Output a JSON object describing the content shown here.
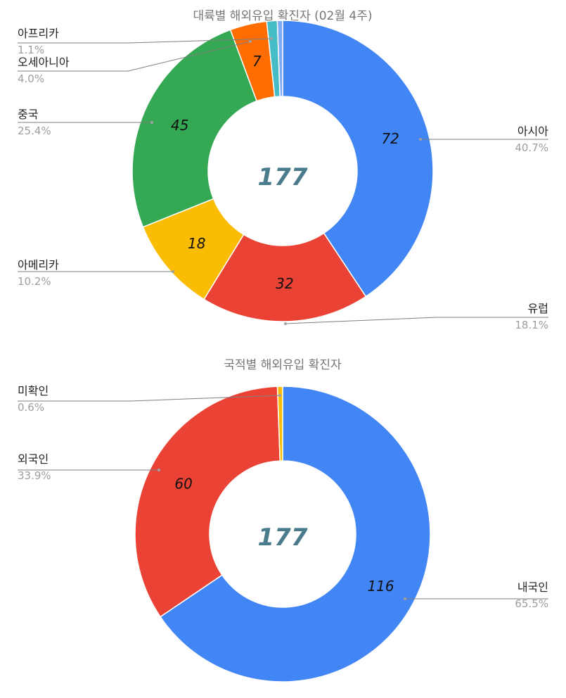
{
  "chart_data": [
    {
      "type": "pie",
      "variant": "donut",
      "title": "대륙별 해외유입 확진자 (02월 4주)",
      "center_total": "177",
      "slices": [
        {
          "label": "아시아",
          "value": 72,
          "value_label": "72",
          "percent": "40.7%",
          "color": "#4285f4"
        },
        {
          "label": "유럽",
          "value": 32,
          "value_label": "32",
          "percent": "18.1%",
          "color": "#ea4335"
        },
        {
          "label": "아메리카",
          "value": 18,
          "value_label": "18",
          "percent": "10.2%",
          "color": "#fbbc04"
        },
        {
          "label": "중국",
          "value": 45,
          "value_label": "45",
          "percent": "25.4%",
          "color": "#34a853"
        },
        {
          "label": "오세아니아",
          "value": 7,
          "value_label": "7",
          "percent": "4.0%",
          "color": "#ff6d01"
        },
        {
          "label": "아프리카",
          "value": 2,
          "value_label": "",
          "percent": "1.1%",
          "color": "#46bdc6"
        },
        {
          "label": "",
          "value": 1,
          "value_label": "",
          "percent": "",
          "color": "#7baaf7"
        }
      ]
    },
    {
      "type": "pie",
      "variant": "donut",
      "title": "국적별 해외유입 확진자",
      "center_total": "177",
      "slices": [
        {
          "label": "내국인",
          "value": 116,
          "value_label": "116",
          "percent": "65.5%",
          "color": "#4285f4"
        },
        {
          "label": "외국인",
          "value": 60,
          "value_label": "60",
          "percent": "33.9%",
          "color": "#ea4335"
        },
        {
          "label": "미확인",
          "value": 1,
          "value_label": "",
          "percent": "0.6%",
          "color": "#fbbc04"
        }
      ]
    }
  ]
}
